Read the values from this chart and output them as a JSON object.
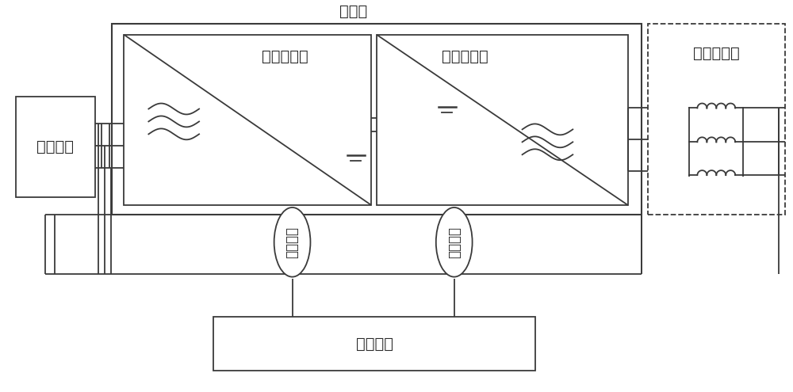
{
  "bg_color": "#ffffff",
  "lc": "#3a3a3a",
  "tc": "#2a2a2a",
  "title_text": "变流器",
  "grid_label": "三相电网",
  "rect_label": "三相整流器",
  "inv_label": "三相逆变器",
  "reactor_label": "并网电抗器",
  "current_label": "电流采样",
  "voltage_label": "电压采样",
  "control_label": "控制单元",
  "fs": 14,
  "fs_small": 12,
  "lw": 1.3
}
